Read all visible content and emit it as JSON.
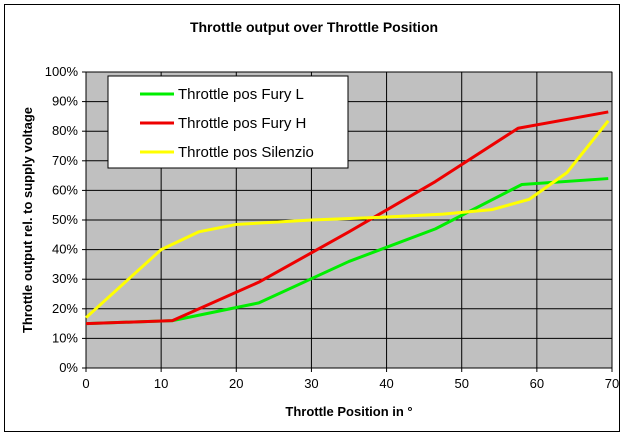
{
  "chart_data": {
    "type": "line",
    "title": "Throttle output over Throttle Position",
    "xlabel": "Throttle Position in °",
    "ylabel": "Throttle output rel. to supply voltage",
    "xlim": [
      0,
      70
    ],
    "ylim": [
      0,
      1
    ],
    "x_ticks": [
      0,
      10,
      20,
      30,
      40,
      50,
      60,
      70
    ],
    "y_ticks": [
      "0%",
      "10%",
      "20%",
      "30%",
      "40%",
      "50%",
      "60%",
      "70%",
      "80%",
      "90%",
      "100%"
    ],
    "grid": true,
    "plot_background": "#c0c0c0",
    "legend_position": "top-left",
    "series": [
      {
        "name": "Throttle pos Fury L",
        "color": "#00ee00",
        "points": [
          [
            0,
            0.15
          ],
          [
            11.5,
            0.16
          ],
          [
            23,
            0.22
          ],
          [
            35,
            0.36
          ],
          [
            46.5,
            0.47
          ],
          [
            58,
            0.62
          ],
          [
            69.5,
            0.64
          ]
        ]
      },
      {
        "name": "Throttle pos Fury H",
        "color": "#ee0000",
        "points": [
          [
            0,
            0.15
          ],
          [
            11.5,
            0.16
          ],
          [
            23,
            0.29
          ],
          [
            35,
            0.46
          ],
          [
            46.5,
            0.63
          ],
          [
            57.5,
            0.81
          ],
          [
            69.5,
            0.865
          ]
        ]
      },
      {
        "name": "Throttle pos Silenzio",
        "color": "#ffff00",
        "points": [
          [
            0,
            0.17
          ],
          [
            10,
            0.4
          ],
          [
            15,
            0.46
          ],
          [
            20,
            0.485
          ],
          [
            30,
            0.5
          ],
          [
            40,
            0.51
          ],
          [
            47.5,
            0.52
          ],
          [
            54,
            0.535
          ],
          [
            59,
            0.57
          ],
          [
            64,
            0.66
          ],
          [
            69.5,
            0.835
          ]
        ]
      }
    ]
  }
}
